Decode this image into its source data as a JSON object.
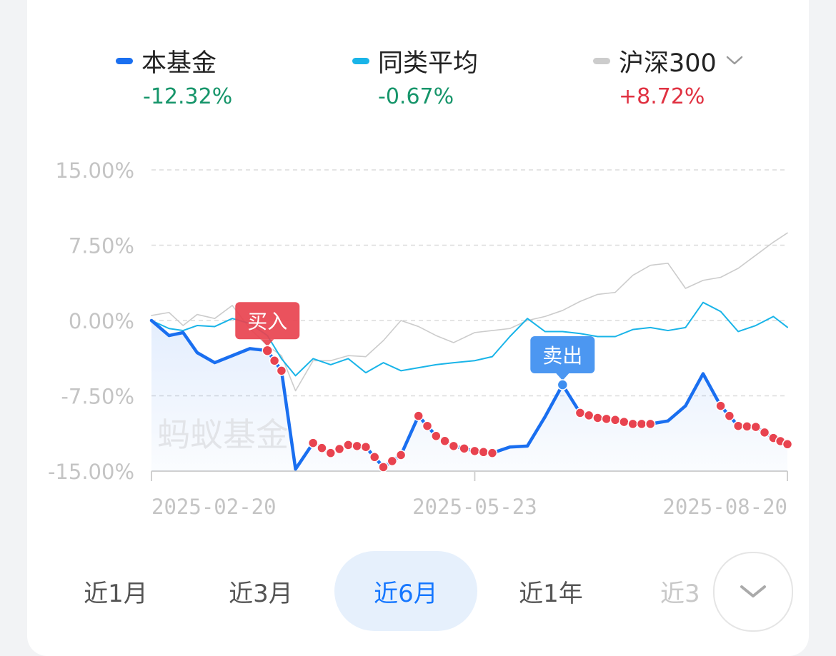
{
  "legend": [
    {
      "name": "本基金",
      "value": "-12.32%",
      "dash_color": "#1a6ff0",
      "value_color": "#16956a"
    },
    {
      "name": "同类平均",
      "value": "-0.67%",
      "dash_color": "#19b4e8",
      "value_color": "#16956a"
    },
    {
      "name": "沪深300",
      "value": "+8.72%",
      "dash_color": "#cccccc",
      "value_color": "#e03141"
    }
  ],
  "watermark": "蚂蚁基金",
  "tabs": [
    {
      "label": "近1月",
      "active": false
    },
    {
      "label": "近3月",
      "active": false
    },
    {
      "label": "近6月",
      "active": true
    },
    {
      "label": "近1年",
      "active": false
    },
    {
      "label": "近3",
      "active": false
    }
  ],
  "colors": {
    "fund": "#1a6ff0",
    "category_avg": "#19b4e8",
    "hs300": "#cccccc",
    "buy_marker": "#e8434f",
    "sell_marker": "#3d8ef0",
    "up": "#e03141",
    "down": "#16956a"
  },
  "icons": {
    "benchmark_dropdown": "chevron-down-icon",
    "more_tabs": "chevron-down-icon"
  },
  "chart_data": {
    "type": "line",
    "x_start": "2025-02-20",
    "x_end": "2025-08-20",
    "x_tick_labels": [
      "2025-02-20",
      "2025-05-23",
      "2025-08-20"
    ],
    "y_tick_labels": [
      "15.00%",
      "7.50%",
      "0.00%",
      "-7.50%",
      "-15.00%"
    ],
    "y_ticks": [
      15,
      7.5,
      0,
      -7.5,
      -15
    ],
    "ylim": [
      -15,
      15
    ],
    "grid": true,
    "legend_position": "top",
    "series": [
      {
        "name": "本基金",
        "color": "#1a6ff0",
        "x": [
          "2025-02-20",
          "2025-02-25",
          "2025-03-01",
          "2025-03-05",
          "2025-03-10",
          "2025-03-15",
          "2025-03-20",
          "2025-03-25",
          "2025-03-29",
          "2025-04-02",
          "2025-04-07",
          "2025-04-12",
          "2025-04-17",
          "2025-04-22",
          "2025-04-27",
          "2025-05-02",
          "2025-05-07",
          "2025-05-12",
          "2025-05-17",
          "2025-05-23",
          "2025-05-28",
          "2025-06-02",
          "2025-06-07",
          "2025-06-12",
          "2025-06-17",
          "2025-06-22",
          "2025-06-27",
          "2025-07-02",
          "2025-07-07",
          "2025-07-12",
          "2025-07-17",
          "2025-07-22",
          "2025-07-27",
          "2025-08-01",
          "2025-08-06",
          "2025-08-11",
          "2025-08-16",
          "2025-08-20"
        ],
        "values": [
          0.0,
          -1.5,
          -1.2,
          -3.2,
          -4.2,
          -3.5,
          -2.8,
          -3.0,
          -5.0,
          -14.8,
          -12.2,
          -13.2,
          -12.4,
          -12.6,
          -14.6,
          -13.4,
          -9.5,
          -11.5,
          -12.5,
          -13.0,
          -13.2,
          -12.6,
          -12.5,
          -9.6,
          -6.4,
          -9.2,
          -9.7,
          -9.9,
          -10.3,
          -10.3,
          -10.0,
          -8.5,
          -5.3,
          -8.5,
          -10.5,
          -10.6,
          -11.7,
          -12.32
        ]
      },
      {
        "name": "同类平均",
        "color": "#19b4e8",
        "x": [
          "2025-02-20",
          "2025-02-25",
          "2025-03-01",
          "2025-03-05",
          "2025-03-10",
          "2025-03-15",
          "2025-03-20",
          "2025-03-25",
          "2025-03-29",
          "2025-04-02",
          "2025-04-07",
          "2025-04-12",
          "2025-04-17",
          "2025-04-22",
          "2025-04-27",
          "2025-05-02",
          "2025-05-07",
          "2025-05-12",
          "2025-05-17",
          "2025-05-23",
          "2025-05-28",
          "2025-06-02",
          "2025-06-07",
          "2025-06-12",
          "2025-06-17",
          "2025-06-22",
          "2025-06-27",
          "2025-07-02",
          "2025-07-07",
          "2025-07-12",
          "2025-07-17",
          "2025-07-22",
          "2025-07-27",
          "2025-08-01",
          "2025-08-06",
          "2025-08-11",
          "2025-08-16",
          "2025-08-20"
        ],
        "values": [
          0.0,
          -0.8,
          -1.0,
          -0.5,
          -0.6,
          0.2,
          -0.3,
          -1.5,
          -3.8,
          -5.5,
          -3.8,
          -4.4,
          -3.8,
          -5.2,
          -4.2,
          -5.0,
          -4.7,
          -4.4,
          -4.2,
          -4.0,
          -3.6,
          -1.6,
          0.2,
          -1.1,
          -1.1,
          -1.3,
          -1.6,
          -1.6,
          -0.9,
          -0.7,
          -1.0,
          -0.7,
          1.8,
          0.9,
          -1.1,
          -0.5,
          0.4,
          -0.67
        ]
      },
      {
        "name": "沪深300",
        "color": "#cccccc",
        "x": [
          "2025-02-20",
          "2025-02-25",
          "2025-03-01",
          "2025-03-05",
          "2025-03-10",
          "2025-03-15",
          "2025-03-20",
          "2025-03-25",
          "2025-03-29",
          "2025-04-02",
          "2025-04-07",
          "2025-04-12",
          "2025-04-17",
          "2025-04-22",
          "2025-04-27",
          "2025-05-02",
          "2025-05-07",
          "2025-05-12",
          "2025-05-17",
          "2025-05-23",
          "2025-05-28",
          "2025-06-02",
          "2025-06-07",
          "2025-06-12",
          "2025-06-17",
          "2025-06-22",
          "2025-06-27",
          "2025-07-02",
          "2025-07-07",
          "2025-07-12",
          "2025-07-17",
          "2025-07-22",
          "2025-07-27",
          "2025-08-01",
          "2025-08-06",
          "2025-08-11",
          "2025-08-16",
          "2025-08-20"
        ],
        "values": [
          0.5,
          0.8,
          -0.5,
          0.6,
          0.2,
          1.5,
          -0.8,
          -2.5,
          -3.5,
          -7.0,
          -4.0,
          -4.0,
          -3.5,
          -3.6,
          -2.0,
          0.0,
          -0.6,
          -1.5,
          -2.2,
          -1.2,
          -1.0,
          -0.8,
          0.0,
          0.4,
          1.0,
          1.9,
          2.6,
          2.8,
          4.5,
          5.5,
          5.7,
          3.2,
          4.0,
          4.3,
          5.2,
          6.5,
          7.8,
          8.72
        ]
      }
    ],
    "annotations": [
      {
        "label": "买入",
        "x": "2025-03-25",
        "y": -3.0,
        "type": "buy"
      },
      {
        "label": "卖出",
        "x": "2025-06-17",
        "y": -6.4,
        "type": "sell"
      }
    ],
    "buy_point_ranges": [
      [
        "2025-03-25",
        "2025-03-29"
      ],
      [
        "2025-04-07",
        "2025-05-02"
      ],
      [
        "2025-05-07",
        "2025-05-28"
      ],
      [
        "2025-06-22",
        "2025-07-12"
      ],
      [
        "2025-08-01",
        "2025-08-20"
      ]
    ]
  }
}
